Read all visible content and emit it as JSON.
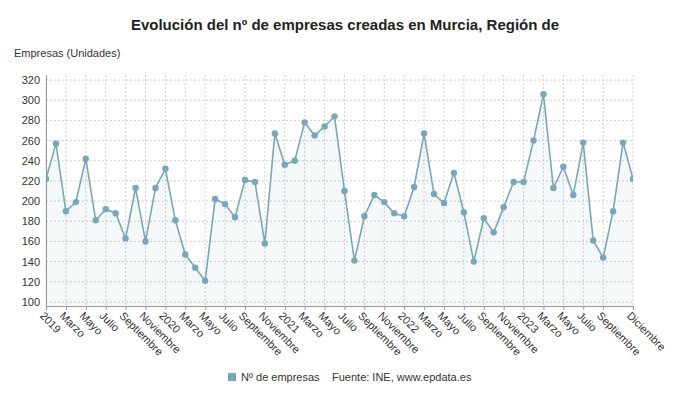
{
  "chart_data": {
    "type": "line",
    "title": "Evolución del nº de empresas creadas en Murcia, Región de",
    "y_label": "Empresas (Unidades)",
    "source": "Fuente: INE, www.epdata.es",
    "categories": [
      "2019",
      null,
      "Marzo",
      null,
      "Mayo",
      null,
      "Julio",
      null,
      "Septiembre",
      null,
      "Noviembre",
      null,
      "2020",
      null,
      "Marzo",
      null,
      "Mayo",
      null,
      "Julio",
      null,
      "Septiembre",
      null,
      "Noviembre",
      null,
      "2021",
      null,
      "Marzo",
      null,
      "Mayo",
      null,
      "Julio",
      null,
      "Septiembre",
      null,
      "Noviembre",
      null,
      "2022",
      null,
      "Marzo",
      null,
      "Mayo",
      null,
      "Julio",
      null,
      "Septiembre",
      null,
      "Noviembre",
      null,
      "2023",
      null,
      "Marzo",
      null,
      "Mayo",
      null,
      "Julio",
      null,
      "Septiembre",
      null,
      null,
      "Diciembre"
    ],
    "series": [
      {
        "name": "Nº de empresas",
        "color": "#79a7b8",
        "marker": "circle",
        "values": [
          222,
          257,
          190,
          199,
          242,
          181,
          192,
          188,
          163,
          213,
          160,
          213,
          232,
          181,
          147,
          134,
          121,
          202,
          197,
          184,
          221,
          219,
          158,
          267,
          236,
          240,
          278,
          265,
          274,
          284,
          210,
          141,
          185,
          206,
          199,
          188,
          185,
          214,
          267,
          207,
          198,
          228,
          189,
          140,
          183,
          169,
          194,
          219,
          219,
          260,
          306,
          213,
          234,
          206,
          258,
          161,
          144,
          190,
          258,
          222
        ]
      }
    ],
    "ylim": [
      96,
      325
    ],
    "yticks": [
      100,
      120,
      140,
      160,
      180,
      200,
      220,
      240,
      260,
      280,
      300,
      320
    ],
    "grid": true
  }
}
